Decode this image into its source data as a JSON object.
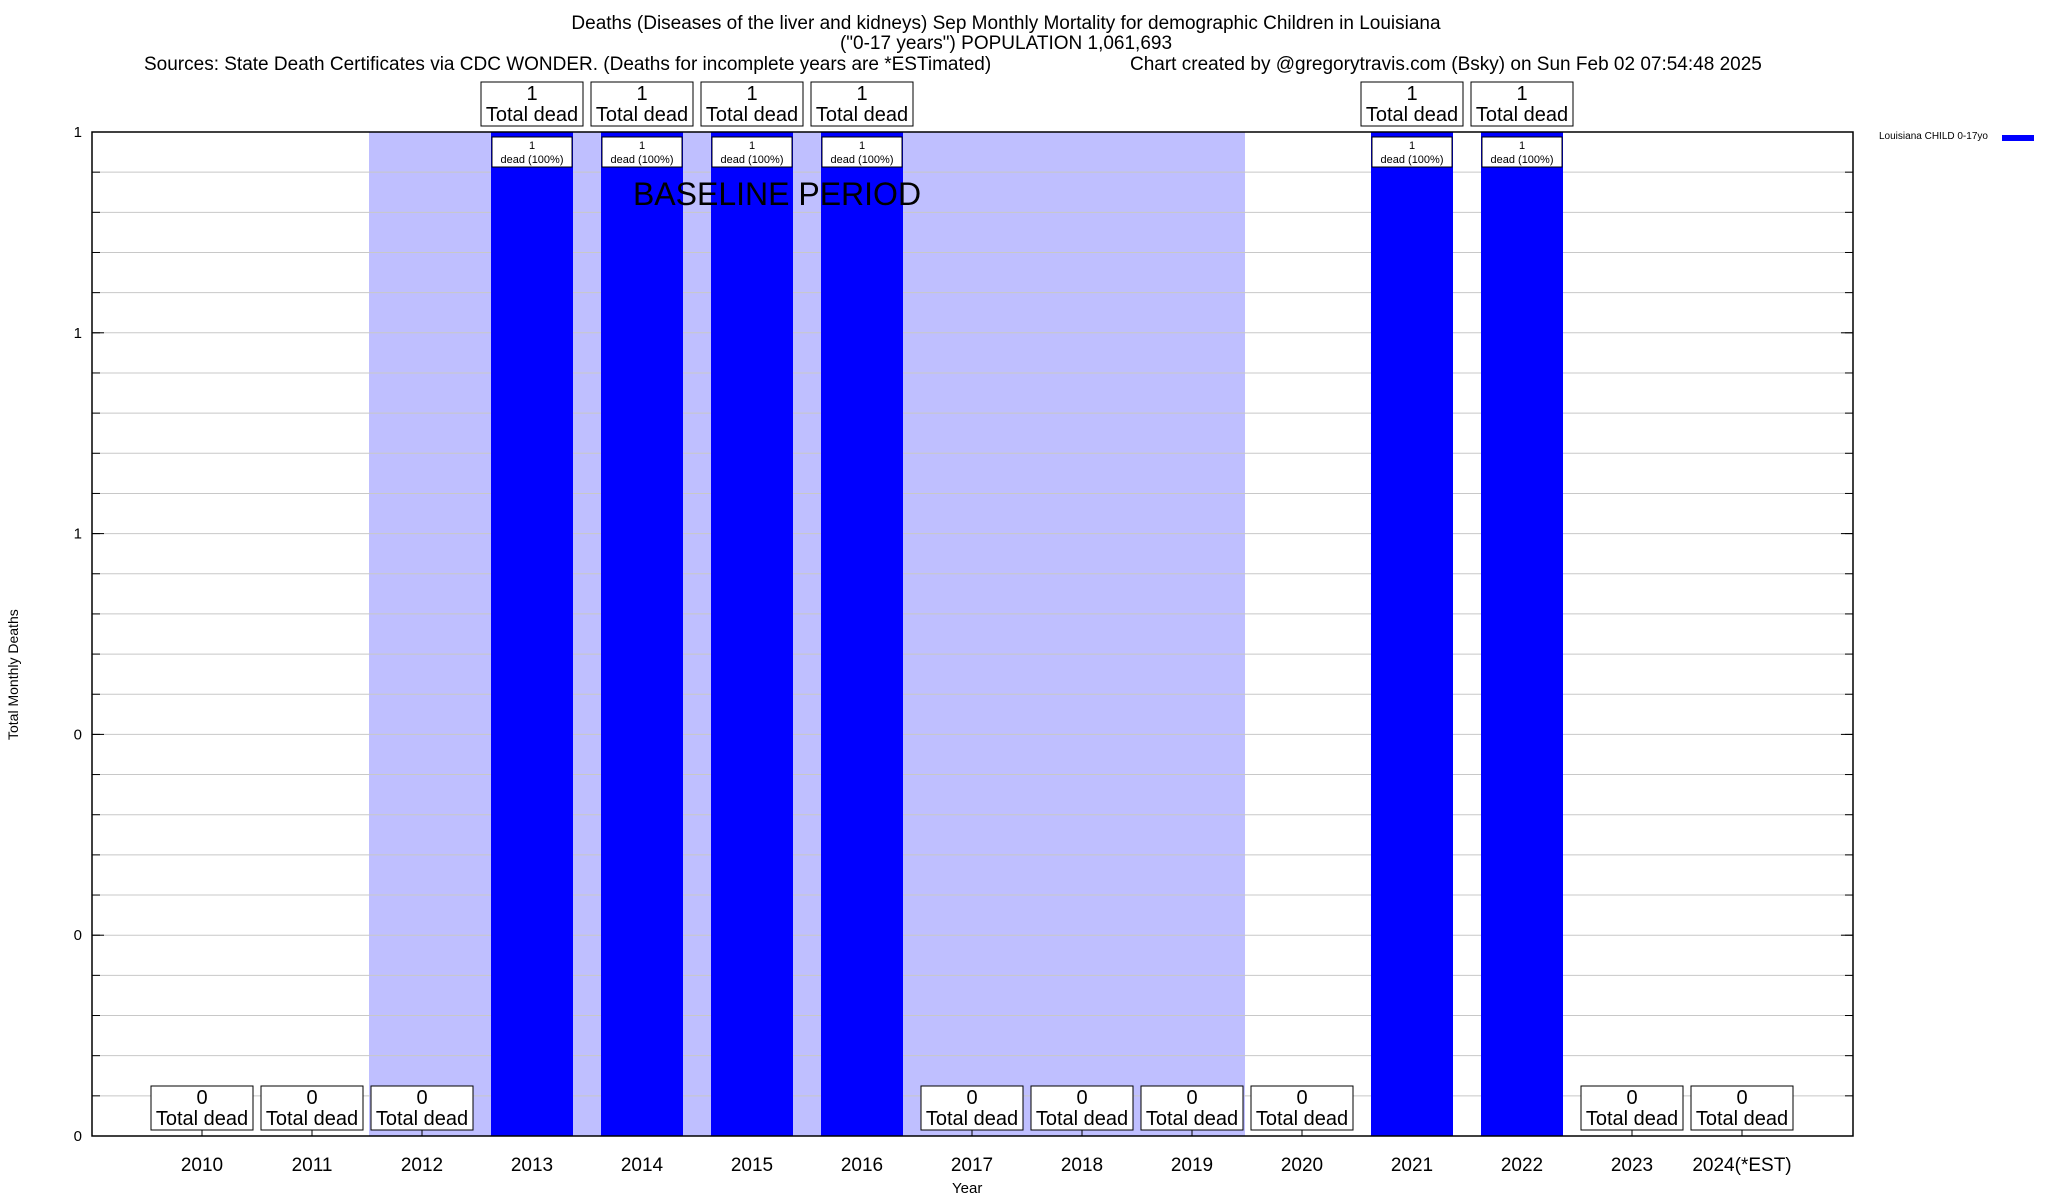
{
  "title_line1": "Deaths (Diseases of the liver and kidneys) Sep Monthly Mortality for demographic Children in Louisiana",
  "title_line2": "(\"0-17 years\") POPULATION 1,061,693",
  "sources": "Sources: State Death Certificates via CDC WONDER. (Deaths for incomplete years are *ESTimated)",
  "credit": "Chart created by @gregorytravis.com (Bsky) on Sun Feb 02 07:54:48 2025",
  "legend_label": "Louisiana CHILD 0-17yo",
  "baseline_label": "BASELINE PERIOD",
  "total_label": "Total dead",
  "dead_pct_label": "dead (100%)",
  "colors": {
    "bar": "#0000ff",
    "baseline_shade": "#bfbfff",
    "grid": "#c8c8c8"
  },
  "chart_data": {
    "type": "bar",
    "title": "Deaths (Diseases of the liver and kidneys) Sep Monthly Mortality for demographic Children in Louisiana",
    "xlabel": "Year",
    "ylabel": "Total Monthly Deaths",
    "categories": [
      "2010",
      "2011",
      "2012",
      "2013",
      "2014",
      "2015",
      "2016",
      "2017",
      "2018",
      "2019",
      "2020",
      "2021",
      "2022",
      "2023",
      "2024(*EST)"
    ],
    "series": [
      {
        "name": "Louisiana CHILD 0-17yo",
        "values": [
          0,
          0,
          0,
          1,
          1,
          1,
          1,
          0,
          0,
          0,
          0,
          1,
          1,
          0,
          0
        ]
      }
    ],
    "ylim": [
      0,
      1
    ],
    "ytick_labels": [
      "0",
      "0",
      "0",
      "1",
      "1",
      "1"
    ],
    "baseline_period": [
      "2012",
      "2019"
    ],
    "grid": true,
    "legend": "top-right"
  }
}
